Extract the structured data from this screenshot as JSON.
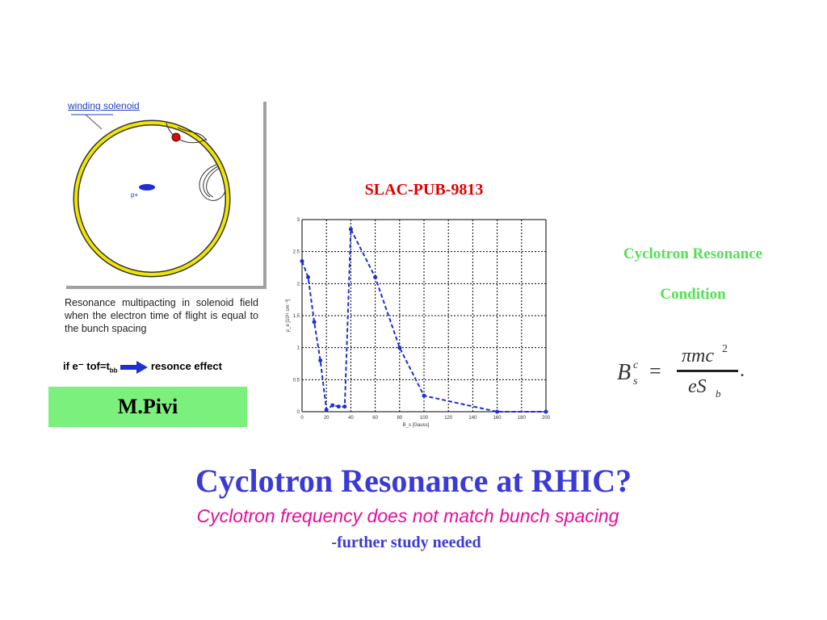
{
  "figure": {
    "winding_label": "winding solenoid",
    "proton_label": "p+",
    "condition_text": "if e⁻ tof=t",
    "condition_subscript": "bb",
    "effect_text": "resonce effect",
    "caption": "Resonance multipacting in solenoid field when the electron time of flight is equal to the bunch spacing"
  },
  "author": "M.Pivi",
  "reference": "SLAC-PUB-9813",
  "condition": {
    "line1": "Cyclotron Resonance",
    "line2": "Condition"
  },
  "formula": {
    "lhs": "B",
    "lhs_sup": "c",
    "lhs_sub": "s",
    "num": "πmc",
    "num_sup": "2",
    "den": "eS",
    "den_sub": "b"
  },
  "title": "Cyclotron Resonance at RHIC?",
  "subtitle": "Cyclotron frequency does not match bunch spacing",
  "note": "-further study needed",
  "chart_data": {
    "type": "line",
    "xlabel": "B_s [Gauss]",
    "ylabel": "ρ_e [10¹¹ cm⁻³]",
    "xlim": [
      0,
      200
    ],
    "ylim": [
      0,
      3
    ],
    "x_ticks": [
      "0",
      "20",
      "40",
      "60",
      "80",
      "100",
      "120",
      "140",
      "160",
      "180",
      "200"
    ],
    "y_ticks": [
      "0",
      "0.5",
      "1",
      "1.5",
      "2",
      "2.5",
      "3"
    ],
    "series": [
      {
        "color": "#1f2fd0",
        "x": [
          0,
          5,
          10,
          15,
          20,
          25,
          30,
          35,
          40,
          60,
          80,
          100,
          160,
          200
        ],
        "y": [
          2.35,
          2.1,
          1.4,
          0.8,
          0.03,
          0.1,
          0.08,
          0.08,
          2.85,
          2.1,
          1.0,
          0.25,
          0.0,
          0.0
        ]
      }
    ]
  }
}
